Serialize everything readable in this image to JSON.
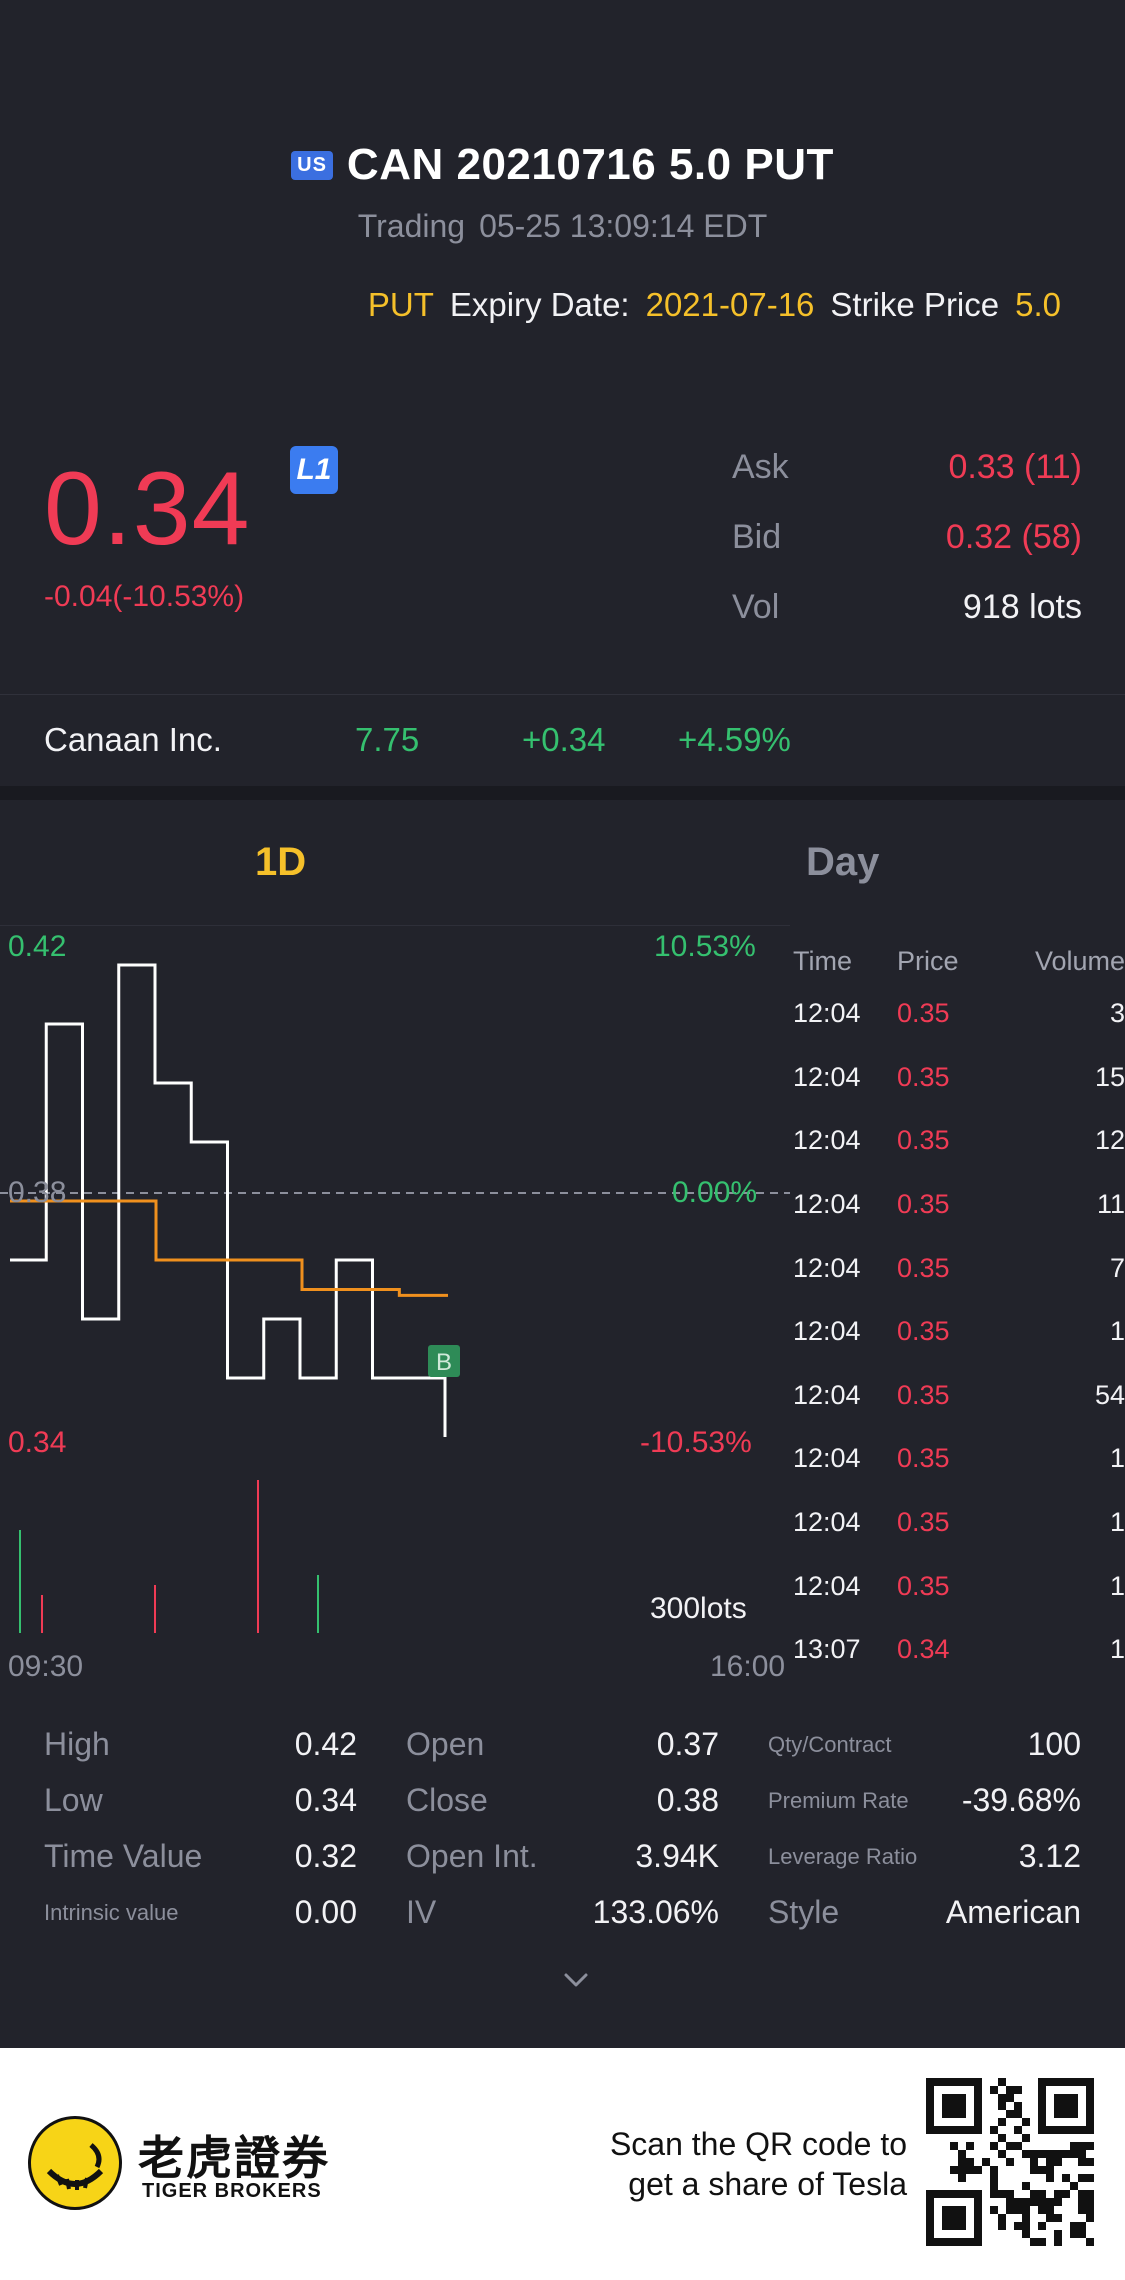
{
  "header": {
    "market_badge": "US",
    "title": "CAN 20210716 5.0 PUT",
    "status": "Trading",
    "timestamp": "05-25 13:09:14 EDT",
    "option_type": "PUT",
    "expiry_label": "Expiry Date:",
    "expiry_value": "2021-07-16",
    "strike_label": "Strike Price",
    "strike_value": "5.0"
  },
  "price": {
    "last": "0.34",
    "level_badge": "L1",
    "change": "-0.04(-10.53%)"
  },
  "quote": {
    "ask_label": "Ask",
    "ask_value": "0.33 (11)",
    "bid_label": "Bid",
    "bid_value": "0.32 (58)",
    "vol_label": "Vol",
    "vol_value": "918 lots"
  },
  "underlying": {
    "name": "Canaan Inc.",
    "price": "7.75",
    "change": "+0.34",
    "change_pct": "+4.59%"
  },
  "tabs": {
    "intraday": "1D",
    "day": "Day"
  },
  "chart": {
    "high_price": "0.42",
    "high_pct": "10.53%",
    "ref_price": "0.38",
    "ref_pct": "0.00%",
    "low_price": "0.34",
    "low_pct": "-10.53%",
    "volume_max": "300lots",
    "time_start": "09:30",
    "time_end": "16:00",
    "marker": "B"
  },
  "chart_data": {
    "type": "line",
    "series": [
      {
        "values": [
          0.37,
          0.41,
          0.36,
          0.42,
          0.4,
          0.39,
          0.35,
          0.36,
          0.35,
          0.37,
          0.35,
          0.35,
          0.34
        ]
      },
      {
        "values": [
          0.38,
          0.38,
          0.38,
          0.37,
          0.37,
          0.37,
          0.365,
          0.365,
          0.364,
          0.364
        ]
      }
    ],
    "ylim": [
      0.34,
      0.42
    ],
    "xlabel": "",
    "ylabel": ""
  },
  "trades": {
    "headers": {
      "time": "Time",
      "price": "Price",
      "volume": "Volume"
    },
    "rows": [
      {
        "time": "12:04",
        "price": "0.35",
        "volume": "3"
      },
      {
        "time": "12:04",
        "price": "0.35",
        "volume": "15"
      },
      {
        "time": "12:04",
        "price": "0.35",
        "volume": "12"
      },
      {
        "time": "12:04",
        "price": "0.35",
        "volume": "11"
      },
      {
        "time": "12:04",
        "price": "0.35",
        "volume": "7"
      },
      {
        "time": "12:04",
        "price": "0.35",
        "volume": "1"
      },
      {
        "time": "12:04",
        "price": "0.35",
        "volume": "54"
      },
      {
        "time": "12:04",
        "price": "0.35",
        "volume": "1"
      },
      {
        "time": "12:04",
        "price": "0.35",
        "volume": "1"
      },
      {
        "time": "12:04",
        "price": "0.35",
        "volume": "1"
      },
      {
        "time": "13:07",
        "price": "0.34",
        "volume": "1"
      }
    ]
  },
  "stats": {
    "high_label": "High",
    "high_value": "0.42",
    "low_label": "Low",
    "low_value": "0.34",
    "time_value_label": "Time Value",
    "time_value_value": "0.32",
    "intrinsic_label": "Intrinsic value",
    "intrinsic_value": "0.00",
    "open_label": "Open",
    "open_value": "0.37",
    "close_label": "Close",
    "close_value": "0.38",
    "open_int_label": "Open Int.",
    "open_int_value": "3.94K",
    "iv_label": "IV",
    "iv_value": "133.06%",
    "qty_label": "Qty/Contract",
    "qty_value": "100",
    "premium_label": "Premium Rate",
    "premium_value": "-39.68%",
    "leverage_label": "Leverage Ratio",
    "leverage_value": "3.12",
    "style_label": "Style",
    "style_value": "American"
  },
  "footer": {
    "brand_cn": "老虎證券",
    "brand_en": "TIGER BROKERS",
    "scan_line1": "Scan the QR code to",
    "scan_line2": "get a share of Tesla"
  },
  "colors": {
    "background": "#22232b",
    "up": "#35c06f",
    "down": "#f03b55",
    "accent": "#f5c02a",
    "line_price": "#ffffff",
    "line_avg": "#f0901e"
  }
}
